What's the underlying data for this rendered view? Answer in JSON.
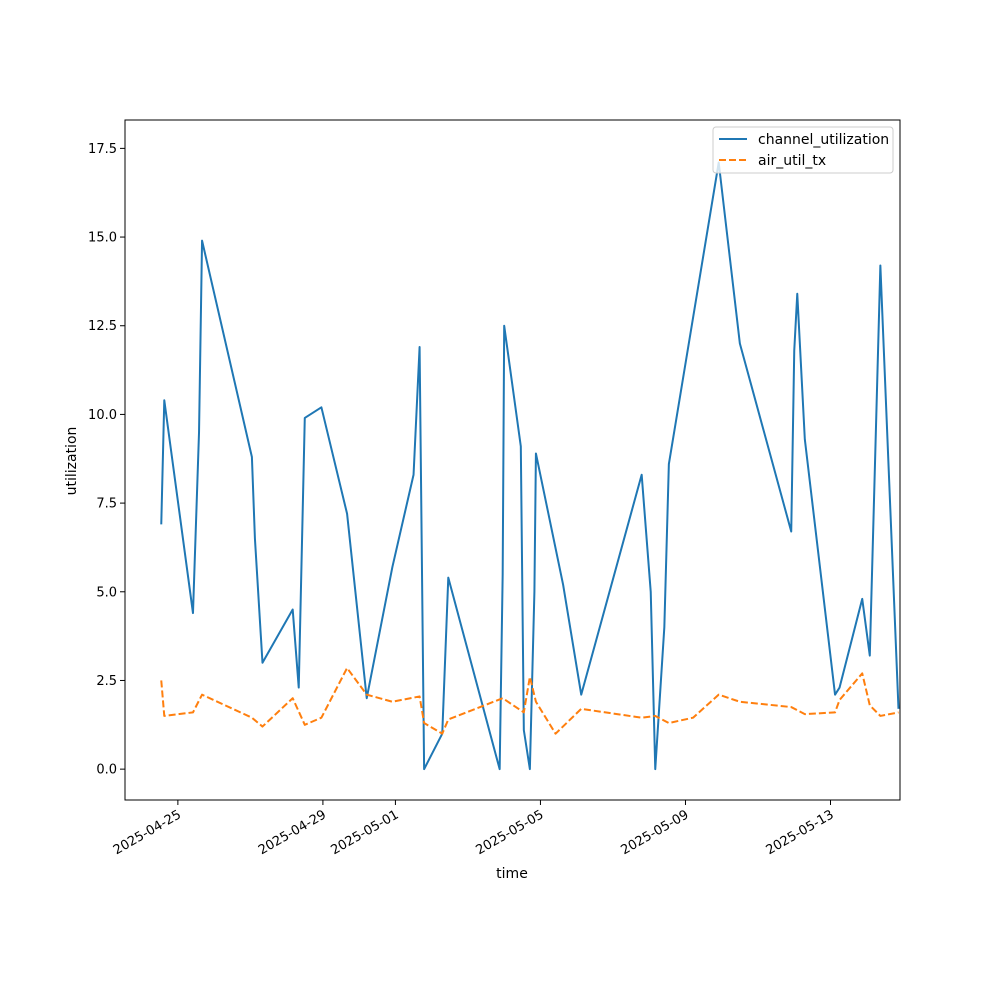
{
  "chart_data": {
    "type": "line",
    "title": "",
    "xlabel": "time",
    "ylabel": "utilization",
    "xlim": [
      "2025-04-23T13:00",
      "2025-05-14T22:00"
    ],
    "ylim": [
      -0.87,
      18.3
    ],
    "yticks": [
      0.0,
      2.5,
      5.0,
      7.5,
      10.0,
      12.5,
      15.0,
      17.5
    ],
    "ytick_labels": [
      "0.0",
      "2.5",
      "5.0",
      "7.5",
      "10.0",
      "12.5",
      "15.0",
      "17.5"
    ],
    "xticks": [
      "2025-04-25",
      "2025-04-29",
      "2025-05-01",
      "2025-05-05",
      "2025-05-09",
      "2025-05-13"
    ],
    "grid": false,
    "legend": "upper right",
    "series": [
      {
        "name": "channel_utilization",
        "color": "#1f77b4",
        "dash": "solid",
        "points": [
          [
            "2025-04-24T13:00",
            6.9
          ],
          [
            "2025-04-24T15:00",
            10.4
          ],
          [
            "2025-04-25T10:00",
            4.4
          ],
          [
            "2025-04-25T14:00",
            9.5
          ],
          [
            "2025-04-25T16:00",
            14.9
          ],
          [
            "2025-04-27T01:00",
            8.8
          ],
          [
            "2025-04-27T03:00",
            6.5
          ],
          [
            "2025-04-27T08:00",
            3.0
          ],
          [
            "2025-04-28T04:00",
            4.5
          ],
          [
            "2025-04-28T08:00",
            2.3
          ],
          [
            "2025-04-28T12:00",
            9.9
          ],
          [
            "2025-04-28T23:00",
            10.2
          ],
          [
            "2025-04-29T16:00",
            7.2
          ],
          [
            "2025-04-30T05:00",
            2.0
          ],
          [
            "2025-04-30T22:00",
            5.7
          ],
          [
            "2025-05-01T12:00",
            8.3
          ],
          [
            "2025-05-01T16:00",
            11.9
          ],
          [
            "2025-05-01T19:00",
            0.0
          ],
          [
            "2025-05-02T07:00",
            1.0
          ],
          [
            "2025-05-02T11:00",
            5.4
          ],
          [
            "2025-05-03T21:00",
            0.0
          ],
          [
            "2025-05-03T23:00",
            5.5
          ],
          [
            "2025-05-04T00:00",
            12.5
          ],
          [
            "2025-05-04T11:00",
            9.1
          ],
          [
            "2025-05-04T13:00",
            1.1
          ],
          [
            "2025-05-04T17:00",
            0.0
          ],
          [
            "2025-05-04T20:00",
            5.0
          ],
          [
            "2025-05-04T21:00",
            8.9
          ],
          [
            "2025-05-05T15:00",
            5.2
          ],
          [
            "2025-05-06T03:00",
            2.1
          ],
          [
            "2025-05-07T19:00",
            8.3
          ],
          [
            "2025-05-08T01:00",
            5.0
          ],
          [
            "2025-05-08T04:00",
            0.0
          ],
          [
            "2025-05-08T10:00",
            4.0
          ],
          [
            "2025-05-08T13:00",
            8.6
          ],
          [
            "2025-05-09T22:00",
            17.1
          ],
          [
            "2025-05-10T12:00",
            12.0
          ],
          [
            "2025-05-11T22:00",
            6.7
          ],
          [
            "2025-05-12T00:00",
            11.8
          ],
          [
            "2025-05-12T02:00",
            13.4
          ],
          [
            "2025-05-12T07:00",
            9.3
          ],
          [
            "2025-05-13T03:00",
            2.1
          ],
          [
            "2025-05-13T06:00",
            2.3
          ],
          [
            "2025-05-13T21:00",
            4.8
          ],
          [
            "2025-05-14T02:00",
            3.2
          ],
          [
            "2025-05-14T09:00",
            14.2
          ],
          [
            "2025-05-14T21:00",
            1.7
          ]
        ]
      },
      {
        "name": "air_util_tx",
        "color": "#ff7f0e",
        "dash": "dashed",
        "points": [
          [
            "2025-04-24T13:00",
            2.5
          ],
          [
            "2025-04-24T15:00",
            1.5
          ],
          [
            "2025-04-25T10:00",
            1.6
          ],
          [
            "2025-04-25T16:00",
            2.1
          ],
          [
            "2025-04-27T01:00",
            1.45
          ],
          [
            "2025-04-27T08:00",
            1.2
          ],
          [
            "2025-04-28T04:00",
            2.0
          ],
          [
            "2025-04-28T12:00",
            1.25
          ],
          [
            "2025-04-28T23:00",
            1.45
          ],
          [
            "2025-04-29T16:00",
            2.85
          ],
          [
            "2025-04-30T05:00",
            2.1
          ],
          [
            "2025-04-30T22:00",
            1.9
          ],
          [
            "2025-05-01T16:00",
            2.05
          ],
          [
            "2025-05-01T19:00",
            1.3
          ],
          [
            "2025-05-02T07:00",
            1.0
          ],
          [
            "2025-05-02T11:00",
            1.4
          ],
          [
            "2025-05-03T23:00",
            2.0
          ],
          [
            "2025-05-04T13:00",
            1.6
          ],
          [
            "2025-05-04T17:00",
            2.6
          ],
          [
            "2025-05-04T21:00",
            1.9
          ],
          [
            "2025-05-05T10:00",
            1.0
          ],
          [
            "2025-05-06T03:00",
            1.7
          ],
          [
            "2025-05-07T19:00",
            1.45
          ],
          [
            "2025-05-08T04:00",
            1.5
          ],
          [
            "2025-05-08T13:00",
            1.3
          ],
          [
            "2025-05-09T05:00",
            1.45
          ],
          [
            "2025-05-09T22:00",
            2.1
          ],
          [
            "2025-05-10T12:00",
            1.9
          ],
          [
            "2025-05-11T22:00",
            1.75
          ],
          [
            "2025-05-12T07:00",
            1.55
          ],
          [
            "2025-05-13T03:00",
            1.6
          ],
          [
            "2025-05-13T06:00",
            1.95
          ],
          [
            "2025-05-13T21:00",
            2.7
          ],
          [
            "2025-05-14T02:00",
            1.8
          ],
          [
            "2025-05-14T09:00",
            1.5
          ],
          [
            "2025-05-14T21:00",
            1.6
          ]
        ]
      }
    ]
  }
}
